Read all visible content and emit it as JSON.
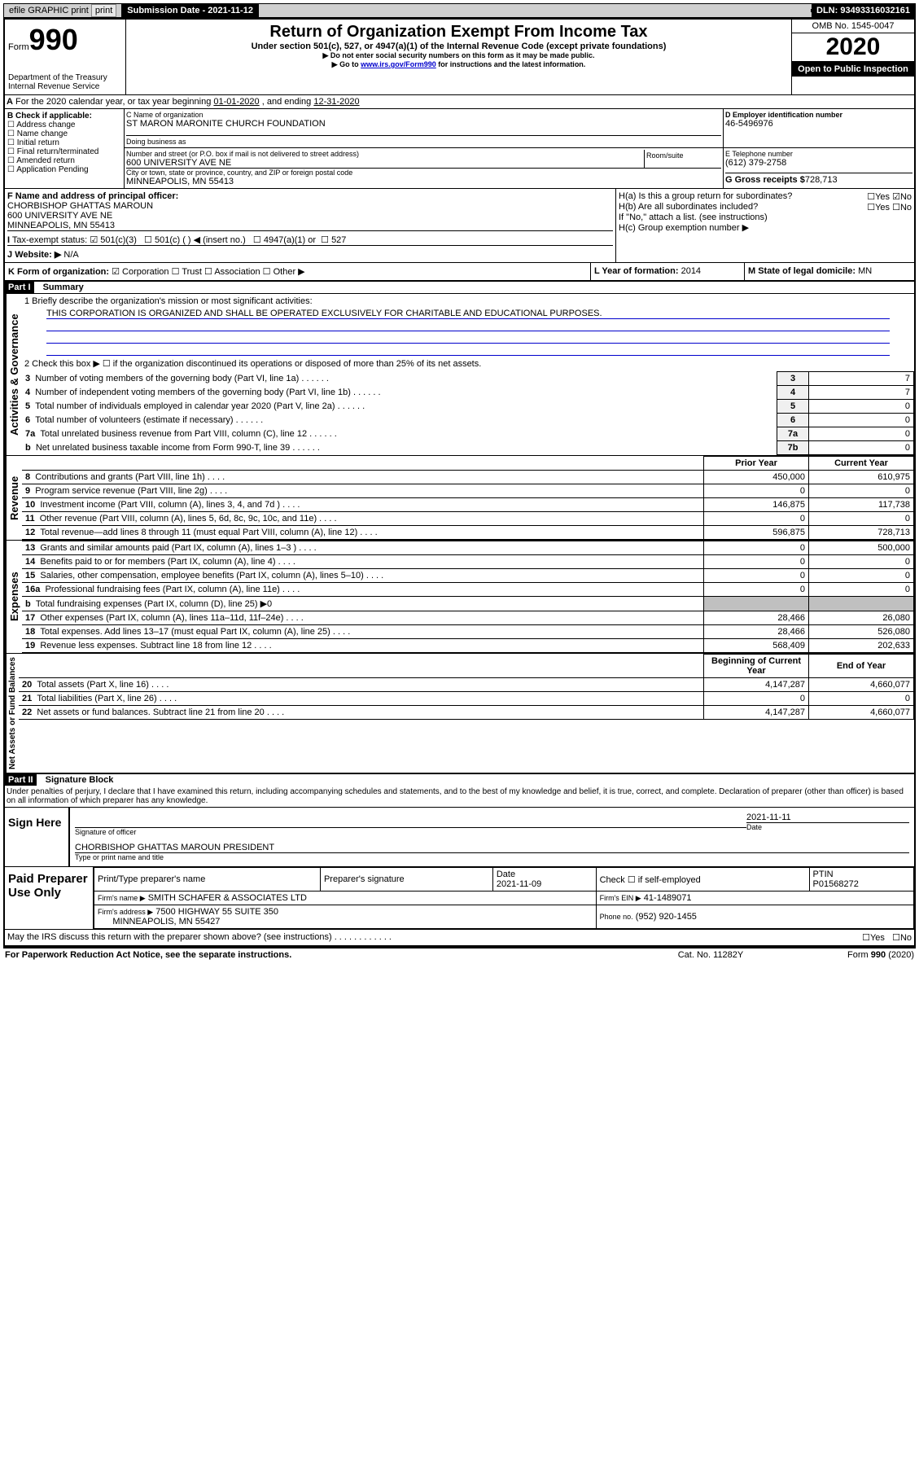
{
  "top_bar": {
    "efile_label": "efile GRAPHIC print",
    "sub_date_label": "Submission Date - 2021-11-12",
    "dln_label": "DLN: 93493316032161"
  },
  "header": {
    "form_label": "Form",
    "form_num": "990",
    "dept": "Department of the Treasury\nInternal Revenue Service",
    "title": "Return of Organization Exempt From Income Tax",
    "subtitle": "Under section 501(c), 527, or 4947(a)(1) of the Internal Revenue Code (except private foundations)",
    "note1": "▶ Do not enter social security numbers on this form as it may be made public.",
    "note2_pre": "▶ Go to ",
    "note2_link": "www.irs.gov/Form990",
    "note2_post": " for instructions and the latest information.",
    "omb": "OMB No. 1545-0047",
    "year": "2020",
    "public": "Open to Public Inspection"
  },
  "periodA": {
    "text_pre": "For the 2020 calendar year, or tax year beginning ",
    "begin": "01-01-2020",
    "mid": " , and ending ",
    "end": "12-31-2020"
  },
  "sectionB": {
    "label": "B Check if applicable:",
    "opts": [
      "Address change",
      "Name change",
      "Initial return",
      "Final return/terminated",
      "Amended return",
      "Application Pending"
    ]
  },
  "sectionC": {
    "name_label": "C Name of organization",
    "name": "ST MARON MARONITE CHURCH FOUNDATION",
    "dba_label": "Doing business as",
    "addr_label": "Number and street (or P.O. box if mail is not delivered to street address)",
    "room_label": "Room/suite",
    "addr": "600 UNIVERSITY AVE NE",
    "city_label": "City or town, state or province, country, and ZIP or foreign postal code",
    "city": "MINNEAPOLIS, MN  55413"
  },
  "sectionD": {
    "label": "D Employer identification number",
    "value": "46-5496976"
  },
  "sectionE": {
    "label": "E Telephone number",
    "value": "(612) 379-2758"
  },
  "sectionG": {
    "label": "G Gross receipts $",
    "value": "728,713"
  },
  "sectionF": {
    "label": "F Name and address of principal officer:",
    "name": "CHORBISHOP GHATTAS MAROUN",
    "addr1": "600 UNIVERSITY AVE NE",
    "addr2": "MINNEAPOLIS, MN  55413"
  },
  "sectionH": {
    "a_label": "H(a) Is this a group return for subordinates?",
    "a_yes": "Yes",
    "a_no": "No",
    "b_label": "H(b) Are all subordinates included?",
    "b_note": "If \"No,\" attach a list. (see instructions)",
    "c_label": "H(c) Group exemption number ▶"
  },
  "sectionI": {
    "label": "Tax-exempt status:",
    "opt1": "501(c)(3)",
    "opt2": "501(c) (  ) ◀ (insert no.)",
    "opt3": "4947(a)(1) or",
    "opt4": "527"
  },
  "sectionJ": {
    "label": "Website: ▶",
    "value": "N/A"
  },
  "sectionK": {
    "label": "K Form of organization:",
    "opts": [
      "Corporation",
      "Trust",
      "Association",
      "Other ▶"
    ]
  },
  "sectionL": {
    "label": "L Year of formation:",
    "value": "2014"
  },
  "sectionM": {
    "label": "M State of legal domicile:",
    "value": "MN"
  },
  "part1": {
    "header": "Part I",
    "title": "Summary",
    "vert1": "Activities & Governance",
    "vert2": "Revenue",
    "vert3": "Expenses",
    "vert4": "Net Assets or Fund Balances",
    "q1_label": "1  Briefly describe the organization's mission or most significant activities:",
    "q1_text": "THIS CORPORATION IS ORGANIZED AND SHALL BE OPERATED EXCLUSIVELY FOR CHARITABLE AND EDUCATIONAL PURPOSES.",
    "q2_label": "2  Check this box ▶ ☐ if the organization discontinued its operations or disposed of more than 25% of its net assets.",
    "rows_gov": [
      {
        "n": "3",
        "label": "Number of voting members of the governing body (Part VI, line 1a)",
        "box": "3",
        "val": "7"
      },
      {
        "n": "4",
        "label": "Number of independent voting members of the governing body (Part VI, line 1b)",
        "box": "4",
        "val": "7"
      },
      {
        "n": "5",
        "label": "Total number of individuals employed in calendar year 2020 (Part V, line 2a)",
        "box": "5",
        "val": "0"
      },
      {
        "n": "6",
        "label": "Total number of volunteers (estimate if necessary)",
        "box": "6",
        "val": "0"
      },
      {
        "n": "7a",
        "label": "Total unrelated business revenue from Part VIII, column (C), line 12",
        "box": "7a",
        "val": "0"
      },
      {
        "n": "b",
        "label": "Net unrelated business taxable income from Form 990-T, line 39",
        "box": "7b",
        "val": "0"
      }
    ],
    "col_prior": "Prior Year",
    "col_current": "Current Year",
    "rows_rev": [
      {
        "n": "8",
        "label": "Contributions and grants (Part VIII, line 1h)",
        "prior": "450,000",
        "curr": "610,975"
      },
      {
        "n": "9",
        "label": "Program service revenue (Part VIII, line 2g)",
        "prior": "0",
        "curr": "0"
      },
      {
        "n": "10",
        "label": "Investment income (Part VIII, column (A), lines 3, 4, and 7d )",
        "prior": "146,875",
        "curr": "117,738"
      },
      {
        "n": "11",
        "label": "Other revenue (Part VIII, column (A), lines 5, 6d, 8c, 9c, 10c, and 11e)",
        "prior": "0",
        "curr": "0"
      },
      {
        "n": "12",
        "label": "Total revenue—add lines 8 through 11 (must equal Part VIII, column (A), line 12)",
        "prior": "596,875",
        "curr": "728,713"
      }
    ],
    "rows_exp": [
      {
        "n": "13",
        "label": "Grants and similar amounts paid (Part IX, column (A), lines 1–3 )",
        "prior": "0",
        "curr": "500,000"
      },
      {
        "n": "14",
        "label": "Benefits paid to or for members (Part IX, column (A), line 4)",
        "prior": "0",
        "curr": "0"
      },
      {
        "n": "15",
        "label": "Salaries, other compensation, employee benefits (Part IX, column (A), lines 5–10)",
        "prior": "0",
        "curr": "0"
      },
      {
        "n": "16a",
        "label": "Professional fundraising fees (Part IX, column (A), line 11e)",
        "prior": "0",
        "curr": "0"
      },
      {
        "n": "b",
        "label": "Total fundraising expenses (Part IX, column (D), line 25) ▶0",
        "prior": "",
        "curr": "",
        "shaded": true
      },
      {
        "n": "17",
        "label": "Other expenses (Part IX, column (A), lines 11a–11d, 11f–24e)",
        "prior": "28,466",
        "curr": "26,080"
      },
      {
        "n": "18",
        "label": "Total expenses. Add lines 13–17 (must equal Part IX, column (A), line 25)",
        "prior": "28,466",
        "curr": "526,080"
      },
      {
        "n": "19",
        "label": "Revenue less expenses. Subtract line 18 from line 12",
        "prior": "568,409",
        "curr": "202,633"
      }
    ],
    "col_begin": "Beginning of Current Year",
    "col_end": "End of Year",
    "rows_net": [
      {
        "n": "20",
        "label": "Total assets (Part X, line 16)",
        "prior": "4,147,287",
        "curr": "4,660,077"
      },
      {
        "n": "21",
        "label": "Total liabilities (Part X, line 26)",
        "prior": "0",
        "curr": "0"
      },
      {
        "n": "22",
        "label": "Net assets or fund balances. Subtract line 21 from line 20",
        "prior": "4,147,287",
        "curr": "4,660,077"
      }
    ]
  },
  "part2": {
    "header": "Part II",
    "title": "Signature Block",
    "penalties": "Under penalties of perjury, I declare that I have examined this return, including accompanying schedules and statements, and to the best of my knowledge and belief, it is true, correct, and complete. Declaration of preparer (other than officer) is based on all information of which preparer has any knowledge.",
    "sign_here": "Sign Here",
    "sig_officer_label": "Signature of officer",
    "sig_date": "2021-11-11",
    "date_label": "Date",
    "officer_name": "CHORBISHOP GHATTAS MAROUN  PRESIDENT",
    "officer_name_label": "Type or print name and title",
    "paid_label": "Paid Preparer Use Only",
    "prep_name_label": "Print/Type preparer's name",
    "prep_sig_label": "Preparer's signature",
    "prep_date_label": "Date",
    "prep_date": "2021-11-09",
    "check_self": "Check ☐ if self-employed",
    "ptin_label": "PTIN",
    "ptin": "P01568272",
    "firm_name_label": "Firm's name    ▶",
    "firm_name": "SMITH SCHAFER & ASSOCIATES LTD",
    "firm_ein_label": "Firm's EIN ▶",
    "firm_ein": "41-1489071",
    "firm_addr_label": "Firm's address ▶",
    "firm_addr1": "7500 HIGHWAY 55 SUITE 350",
    "firm_addr2": "MINNEAPOLIS, MN  55427",
    "phone_label": "Phone no.",
    "phone": "(952) 920-1455",
    "discuss": "May the IRS discuss this return with the preparer shown above? (see instructions)",
    "discuss_yes": "Yes",
    "discuss_no": "No"
  },
  "footer": {
    "paperwork": "For Paperwork Reduction Act Notice, see the separate instructions.",
    "cat": "Cat. No. 11282Y",
    "form": "Form 990 (2020)"
  }
}
